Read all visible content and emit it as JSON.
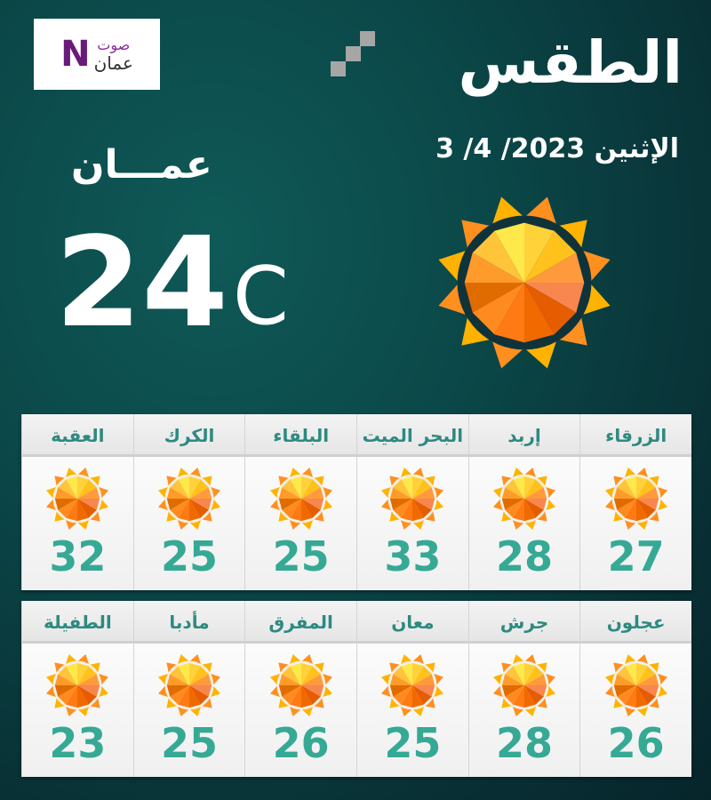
{
  "logo": {
    "line1": "صوت",
    "line2": "عمان",
    "mark": "N"
  },
  "header": {
    "title": "الطقس",
    "date": "الإثنين 2023/ 4/ 3"
  },
  "current": {
    "city": "عمـــان",
    "temperature": "24",
    "unit": "C",
    "condition_icon": "sunny-icon"
  },
  "colors": {
    "temp_text": "#36a995",
    "city_text": "#2d8a80",
    "background": "#0b4748"
  },
  "cities": [
    [
      {
        "name": "الزرقاء",
        "temp": "27"
      },
      {
        "name": "إربد",
        "temp": "28"
      },
      {
        "name": "البحر الميت",
        "temp": "33"
      },
      {
        "name": "البلقاء",
        "temp": "25"
      },
      {
        "name": "الكرك",
        "temp": "25"
      },
      {
        "name": "العقبة",
        "temp": "32"
      }
    ],
    [
      {
        "name": "عجلون",
        "temp": "26"
      },
      {
        "name": "جرش",
        "temp": "28"
      },
      {
        "name": "معان",
        "temp": "25"
      },
      {
        "name": "المفرق",
        "temp": "26"
      },
      {
        "name": "مأدبا",
        "temp": "25"
      },
      {
        "name": "الطفيلة",
        "temp": "23"
      }
    ]
  ]
}
